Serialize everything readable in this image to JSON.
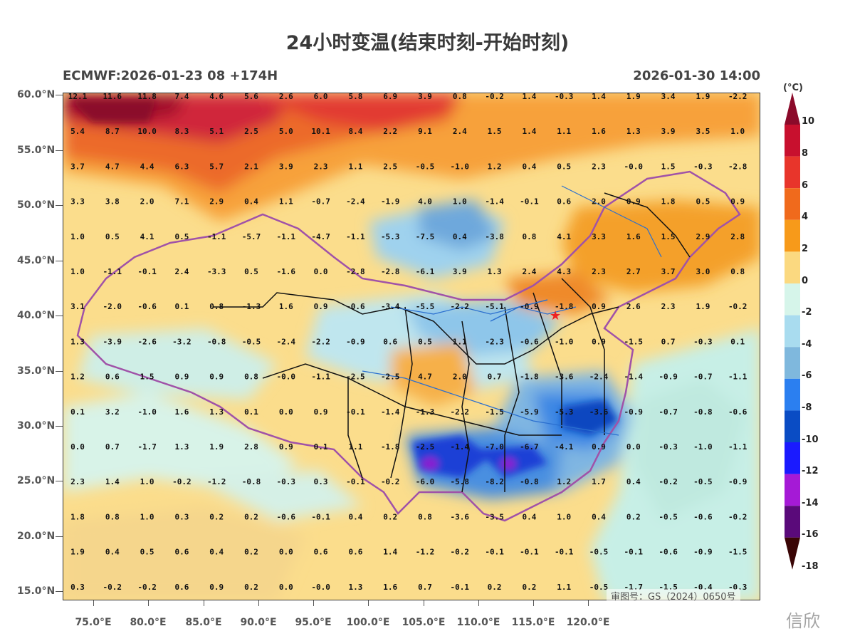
{
  "header": {
    "title": "24小时变温(结束时刻-开始时刻)",
    "model_run": "ECMWF:2026-01-23 08 +174H",
    "valid_time": "2026-01-30 14:00"
  },
  "axes": {
    "lat_labels": [
      "60.0°N",
      "55.0°N",
      "50.0°N",
      "45.0°N",
      "40.0°N",
      "35.0°N",
      "30.0°N",
      "25.0°N",
      "20.0°N",
      "15.0°N"
    ],
    "lon_labels": [
      "75.0°E",
      "80.0°E",
      "85.0°E",
      "90.0°E",
      "95.0°E",
      "100.0°E",
      "105.0°E",
      "110.0°E",
      "115.0°E",
      "120.0°E"
    ]
  },
  "colorbar": {
    "unit": "(°C)",
    "labels": [
      "10",
      "8",
      "6",
      "4",
      "2",
      "0",
      "-2",
      "-4",
      "-6",
      "-8",
      "-10",
      "-12",
      "-14",
      "-16",
      "-18"
    ],
    "colors": [
      "#8b0a2a",
      "#c8102e",
      "#e8352b",
      "#f06a1c",
      "#f79a1a",
      "#fbd980",
      "#d6f5ea",
      "#a9dcef",
      "#7fb8dd",
      "#2b7ff0",
      "#0a4cc4",
      "#1a1aff",
      "#a51ad6",
      "#5a0a7a",
      "#6b0a0a"
    ]
  },
  "grid_values": [
    [
      "12.1",
      "11.6",
      "11.8",
      "7.4",
      "4.6",
      "5.6",
      "2.6",
      "6.0",
      "5.8",
      "6.9",
      "3.9",
      "0.8",
      "-0.2",
      "1.4",
      "-0.3",
      "1.4",
      "1.9",
      "3.4",
      "1.9",
      "-2.2"
    ],
    [
      "5.4",
      "8.7",
      "10.0",
      "8.3",
      "5.1",
      "2.5",
      "5.0",
      "10.1",
      "8.4",
      "2.2",
      "9.1",
      "2.4",
      "1.5",
      "1.4",
      "1.1",
      "1.6",
      "1.3",
      "3.9",
      "3.5",
      "1.0"
    ],
    [
      "3.7",
      "4.7",
      "4.4",
      "6.3",
      "5.7",
      "2.1",
      "3.9",
      "2.3",
      "1.1",
      "2.5",
      "-0.5",
      "-1.0",
      "1.2",
      "0.4",
      "0.5",
      "2.3",
      "-0.0",
      "1.5",
      "-0.3",
      "-2.8"
    ],
    [
      "3.3",
      "3.8",
      "2.0",
      "7.1",
      "2.9",
      "0.4",
      "1.1",
      "-0.7",
      "-2.4",
      "-1.9",
      "4.0",
      "1.0",
      "-1.4",
      "-0.1",
      "0.6",
      "2.0",
      "0.9",
      "1.8",
      "0.5",
      "0.9"
    ],
    [
      "1.0",
      "0.5",
      "4.1",
      "0.5",
      "-1.1",
      "-5.7",
      "-1.1",
      "-4.7",
      "-1.1",
      "-5.3",
      "-7.5",
      "0.4",
      "-3.8",
      "0.8",
      "4.1",
      "3.3",
      "1.6",
      "1.5",
      "2.9",
      "2.8"
    ],
    [
      "1.0",
      "-1.1",
      "-0.1",
      "2.4",
      "-3.3",
      "0.5",
      "-1.6",
      "0.0",
      "-2.8",
      "-2.8",
      "-6.1",
      "3.9",
      "1.3",
      "2.4",
      "4.3",
      "2.3",
      "2.7",
      "3.7",
      "3.0",
      "0.8"
    ],
    [
      "3.1",
      "-2.0",
      "-0.6",
      "0.1",
      "0.8",
      "-1.3",
      "1.6",
      "0.9",
      "-0.6",
      "-3.4",
      "-5.5",
      "-2.2",
      "-5.1",
      "-0.9",
      "-1.8",
      "0.9",
      "2.6",
      "2.3",
      "1.9",
      "-0.2"
    ],
    [
      "1.3",
      "-3.9",
      "-2.6",
      "-3.2",
      "-0.8",
      "-0.5",
      "-2.4",
      "-2.2",
      "-0.9",
      "0.6",
      "0.5",
      "1.1",
      "-2.3",
      "-0.6",
      "-1.0",
      "0.9",
      "-1.5",
      "0.7",
      "-0.3",
      "0.1"
    ],
    [
      "1.2",
      "0.6",
      "1.5",
      "0.9",
      "0.9",
      "0.8",
      "-0.0",
      "-1.1",
      "-2.5",
      "-2.5",
      "4.7",
      "2.0",
      "0.7",
      "-1.8",
      "-3.6",
      "-2.4",
      "-1.4",
      "-0.9",
      "-0.7",
      "-1.1"
    ],
    [
      "0.1",
      "3.2",
      "-1.0",
      "1.6",
      "1.3",
      "0.1",
      "0.0",
      "0.9",
      "-0.1",
      "-1.4",
      "-1.3",
      "-2.2",
      "-1.5",
      "-5.9",
      "-5.3",
      "-3.6",
      "-0.9",
      "-0.7",
      "-0.8",
      "-0.6"
    ],
    [
      "0.0",
      "0.7",
      "-1.7",
      "1.3",
      "1.9",
      "2.8",
      "0.9",
      "0.1",
      "1.1",
      "-1.8",
      "-2.5",
      "-1.4",
      "-7.0",
      "-6.7",
      "-4.1",
      "0.9",
      "0.0",
      "-0.3",
      "-1.0",
      "-1.1"
    ],
    [
      "2.3",
      "1.4",
      "1.0",
      "-0.2",
      "-1.2",
      "-0.8",
      "-0.3",
      "0.3",
      "-0.1",
      "-0.2",
      "-6.0",
      "-5.8",
      "-8.2",
      "-0.8",
      "1.2",
      "1.7",
      "0.4",
      "-0.2",
      "-0.5",
      "-0.9"
    ],
    [
      "1.8",
      "0.8",
      "1.0",
      "0.3",
      "0.2",
      "0.2",
      "-0.6",
      "-0.1",
      "0.4",
      "0.2",
      "0.8",
      "-3.6",
      "-3.5",
      "0.4",
      "1.0",
      "0.4",
      "0.2",
      "-0.5",
      "-0.6",
      "-0.2"
    ],
    [
      "1.9",
      "0.4",
      "0.5",
      "0.6",
      "0.4",
      "0.2",
      "0.0",
      "0.6",
      "0.6",
      "1.4",
      "-1.2",
      "-0.2",
      "-0.1",
      "-0.1",
      "-0.1",
      "-0.5",
      "-0.1",
      "-0.6",
      "-0.9",
      "-1.5"
    ],
    [
      "0.3",
      "-0.2",
      "-0.2",
      "0.6",
      "0.9",
      "0.2",
      "0.0",
      "-0.0",
      "1.3",
      "1.6",
      "0.7",
      "-0.1",
      "0.2",
      "0.2",
      "1.1",
      "-0.5",
      "-1.7",
      "-1.5",
      "-0.4",
      "-0.3"
    ]
  ],
  "approval_text": "审图号：GS（2024）0650号",
  "watermark": "信欣"
}
